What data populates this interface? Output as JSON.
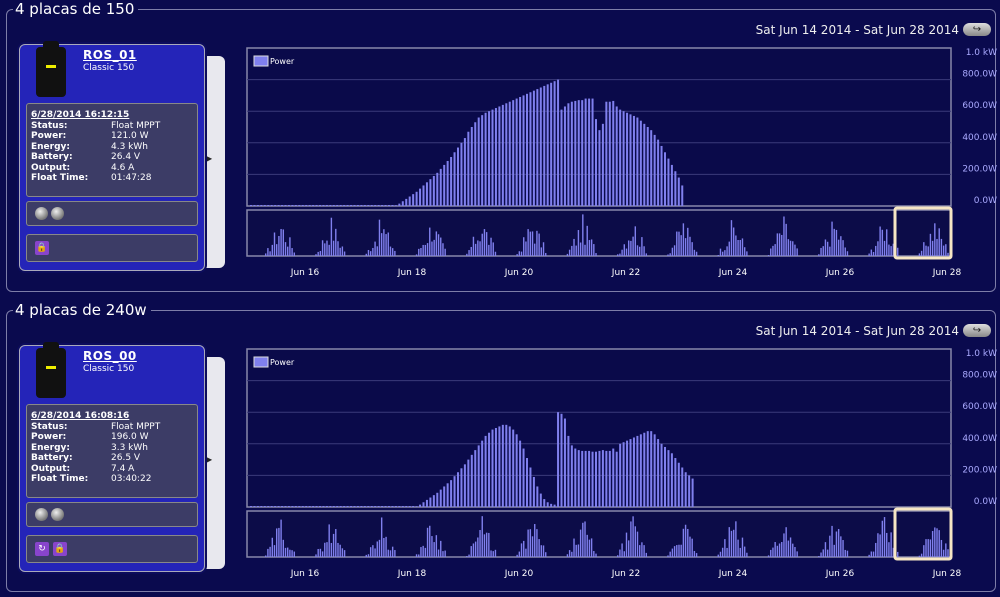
{
  "range_text": "Sat Jun 14 2014 - Sat Jun 28 2014",
  "legend": "Power",
  "y_ticks": [
    "1.0 kW",
    "800.0W",
    "600.0W",
    "400.0W",
    "200.0W",
    "0.0W"
  ],
  "x_ticks": [
    "Jun 16",
    "Jun 18",
    "Jun 20",
    "Jun 22",
    "Jun 24",
    "Jun 26",
    "Jun 28"
  ],
  "colors": {
    "bg": "#0a0a4e",
    "bar": "#8080ee",
    "card": "#2424b8",
    "nav_highlight": "#f6e6c4"
  },
  "panels": [
    {
      "title": "4 placas de 150",
      "name": "ROS_01",
      "model": "Classic 150",
      "date": "6/28/2014 16:12:15",
      "stats": [
        {
          "k": "Status:",
          "v": "Float MPPT"
        },
        {
          "k": "Power:",
          "v": "121.0 W"
        },
        {
          "k": "Energy:",
          "v": "4.3 kWh"
        },
        {
          "k": "Battery:",
          "v": "26.4 V"
        },
        {
          "k": "Output:",
          "v": "4.6 A"
        },
        {
          "k": "Float Time:",
          "v": "01:47:28"
        }
      ]
    },
    {
      "title": "4 placas de 240w",
      "name": "ROS_00",
      "model": "Classic 150",
      "date": "6/28/2014 16:08:16",
      "stats": [
        {
          "k": "Status:",
          "v": "Float MPPT"
        },
        {
          "k": "Power:",
          "v": "196.0 W"
        },
        {
          "k": "Energy:",
          "v": "3.3 kWh"
        },
        {
          "k": "Battery:",
          "v": "26.5 V"
        },
        {
          "k": "Output:",
          "v": "7.4 A"
        },
        {
          "k": "Float Time:",
          "v": "03:40:22"
        }
      ]
    }
  ],
  "chart_data": [
    {
      "type": "bar",
      "series": [
        {
          "name": "Power",
          "unit": "W",
          "values": [
            0,
            0,
            0,
            0,
            0,
            0,
            0,
            0,
            0,
            0,
            0,
            0,
            0,
            0,
            0,
            0,
            0,
            0,
            0,
            0,
            0,
            0,
            0,
            0,
            0,
            0,
            0,
            0,
            0,
            0,
            0,
            0,
            0,
            0,
            0,
            0,
            0,
            0,
            0,
            0,
            0,
            0,
            5,
            15,
            30,
            45,
            60,
            75,
            90,
            110,
            130,
            150,
            170,
            190,
            210,
            235,
            260,
            285,
            310,
            340,
            370,
            400,
            430,
            470,
            500,
            530,
            560,
            575,
            590,
            600,
            610,
            620,
            630,
            640,
            650,
            660,
            670,
            680,
            690,
            700,
            710,
            720,
            730,
            740,
            750,
            760,
            770,
            780,
            790,
            800,
            610,
            630,
            650,
            660,
            665,
            670,
            670,
            680,
            680,
            680,
            550,
            480,
            520,
            660,
            660,
            665,
            630,
            610,
            600,
            590,
            580,
            570,
            560,
            540,
            520,
            500,
            480,
            450,
            420,
            380,
            340,
            300,
            260,
            220,
            180,
            130
          ]
        }
      ],
      "ylim": [
        0,
        1000
      ],
      "x_range": [
        "Jun 14",
        "Jun 24"
      ]
    },
    {
      "type": "bar",
      "series": [
        {
          "name": "Power",
          "unit": "W",
          "values": [
            0,
            0,
            0,
            0,
            0,
            0,
            0,
            0,
            0,
            0,
            0,
            0,
            0,
            0,
            0,
            0,
            0,
            0,
            0,
            0,
            0,
            0,
            0,
            0,
            0,
            0,
            0,
            0,
            0,
            0,
            0,
            0,
            0,
            0,
            0,
            0,
            0,
            0,
            0,
            0,
            0,
            0,
            0,
            0,
            0,
            0,
            0,
            0,
            5,
            15,
            30,
            45,
            60,
            75,
            90,
            110,
            130,
            150,
            170,
            195,
            220,
            245,
            270,
            300,
            330,
            360,
            390,
            420,
            450,
            470,
            490,
            500,
            510,
            520,
            520,
            510,
            490,
            460,
            420,
            370,
            310,
            250,
            190,
            130,
            85,
            50,
            30,
            20,
            15,
            600,
            590,
            560,
            450,
            390,
            370,
            360,
            355,
            355,
            355,
            350,
            350,
            355,
            360,
            355,
            355,
            370,
            350,
            400,
            410,
            420,
            430,
            440,
            450,
            460,
            470,
            480,
            480,
            460,
            430,
            400,
            380,
            360,
            340,
            310,
            280,
            250,
            220,
            200,
            180
          ]
        }
      ],
      "ylim": [
        0,
        1000
      ],
      "x_range": [
        "Jun 14",
        "Jun 24"
      ]
    }
  ]
}
